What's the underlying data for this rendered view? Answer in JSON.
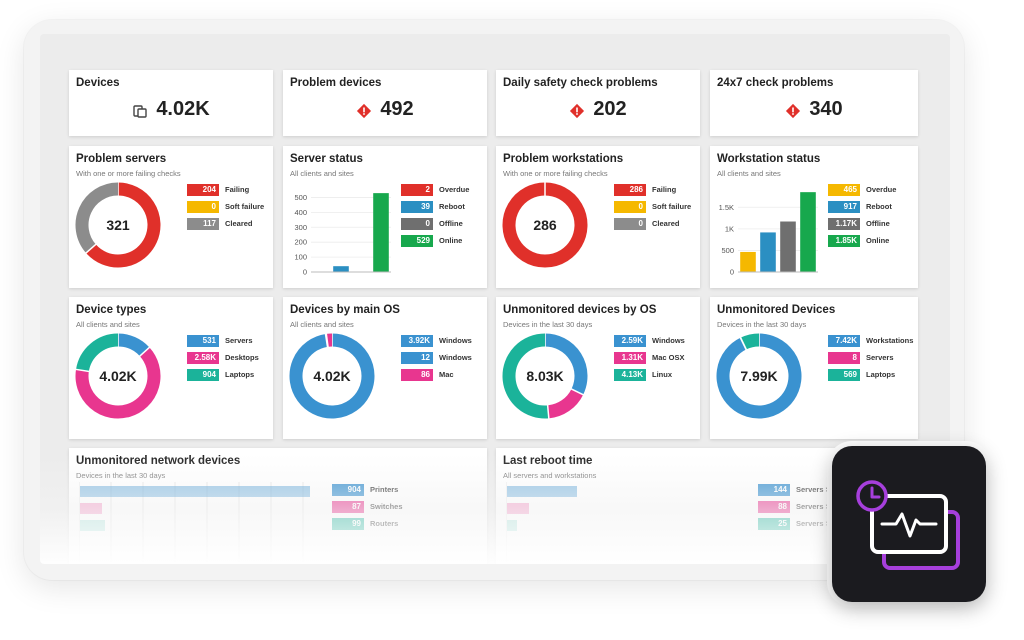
{
  "summary": [
    {
      "title": "Devices",
      "value": "4.02K",
      "icon": "devices-icon"
    },
    {
      "title": "Problem devices",
      "value": "492",
      "icon": "alert-icon"
    },
    {
      "title": "Daily safety check problems",
      "value": "202",
      "icon": "alert-icon"
    },
    {
      "title": "24x7 check problems",
      "value": "340",
      "icon": "alert-icon"
    }
  ],
  "problem_servers": {
    "title": "Problem servers",
    "subtitle": "With one or more failing checks",
    "center": "321",
    "legend": [
      {
        "value": "204",
        "label": "Failing",
        "color": "#e0302a"
      },
      {
        "value": "0",
        "label": "Soft failure",
        "color": "#f5b800"
      },
      {
        "value": "117",
        "label": "Cleared",
        "color": "#8c8c8c"
      }
    ]
  },
  "server_status": {
    "title": "Server status",
    "subtitle": "All clients and sites",
    "legend": [
      {
        "value": "2",
        "label": "Overdue",
        "color": "#e0302a"
      },
      {
        "value": "39",
        "label": "Reboot",
        "color": "#2b8fc2"
      },
      {
        "value": "0",
        "label": "Offline",
        "color": "#6f6f6f"
      },
      {
        "value": "529",
        "label": "Online",
        "color": "#17a84d"
      }
    ]
  },
  "problem_workstations": {
    "title": "Problem workstations",
    "subtitle": "With one or more failing checks",
    "center": "286",
    "legend": [
      {
        "value": "286",
        "label": "Failing",
        "color": "#e0302a"
      },
      {
        "value": "0",
        "label": "Soft failure",
        "color": "#f5b800"
      },
      {
        "value": "0",
        "label": "Cleared",
        "color": "#8c8c8c"
      }
    ]
  },
  "workstation_status": {
    "title": "Workstation status",
    "subtitle": "All clients and sites",
    "legend": [
      {
        "value": "465",
        "label": "Overdue",
        "color": "#f5b800"
      },
      {
        "value": "917",
        "label": "Reboot",
        "color": "#2b8fc2"
      },
      {
        "value": "1.17K",
        "label": "Offline",
        "color": "#6f6f6f"
      },
      {
        "value": "1.85K",
        "label": "Online",
        "color": "#17a84d"
      }
    ]
  },
  "device_types": {
    "title": "Device types",
    "subtitle": "All clients and sites",
    "center": "4.02K",
    "legend": [
      {
        "value": "531",
        "label": "Servers",
        "color": "#3a92d0"
      },
      {
        "value": "2.58K",
        "label": "Desktops",
        "color": "#e8368f"
      },
      {
        "value": "904",
        "label": "Laptops",
        "color": "#1bb39a"
      }
    ]
  },
  "devices_by_os": {
    "title": "Devices by main OS",
    "subtitle": "All clients and sites",
    "center": "4.02K",
    "legend": [
      {
        "value": "3.92K",
        "label": "Windows",
        "color": "#3a92d0"
      },
      {
        "value": "12",
        "label": "Windows",
        "color": "#3a92d0"
      },
      {
        "value": "86",
        "label": "Mac",
        "color": "#e8368f"
      }
    ]
  },
  "unmonitored_by_os": {
    "title": "Unmonitored devices by OS",
    "subtitle": "Devices in the last 30 days",
    "center": "8.03K",
    "legend": [
      {
        "value": "2.59K",
        "label": "Windows",
        "color": "#3a92d0"
      },
      {
        "value": "1.31K",
        "label": "Mac OSX",
        "color": "#e8368f"
      },
      {
        "value": "4.13K",
        "label": "Linux",
        "color": "#1bb39a"
      }
    ]
  },
  "unmonitored_devices": {
    "title": "Unmonitored Devices",
    "subtitle": "Devices in the last 30 days",
    "center": "7.99K",
    "legend": [
      {
        "value": "7.42K",
        "label": "Workstations",
        "color": "#3a92d0"
      },
      {
        "value": "8",
        "label": "Servers",
        "color": "#e8368f"
      },
      {
        "value": "569",
        "label": "Laptops",
        "color": "#1bb39a"
      }
    ]
  },
  "unmonitored_network": {
    "title": "Unmonitored network devices",
    "subtitle": "Devices in the last 30 days",
    "legend": [
      {
        "value": "904",
        "label": "Printers",
        "color": "#3a92d0"
      },
      {
        "value": "87",
        "label": "Switches",
        "color": "#e8368f"
      },
      {
        "value": "99",
        "label": "Routers",
        "color": "#1bb39a"
      }
    ]
  },
  "last_reboot": {
    "title": "Last reboot time",
    "subtitle": "All servers and workstations",
    "legend": [
      {
        "value": "144",
        "label": "Servers >",
        "color": "#3a92d0"
      },
      {
        "value": "88",
        "label": "Servers >",
        "color": "#e8368f"
      },
      {
        "value": "25",
        "label": "Servers >",
        "color": "#1bb39a"
      }
    ]
  },
  "chart_data": [
    {
      "type": "pie",
      "title": "Problem servers",
      "categories": [
        "Failing",
        "Soft failure",
        "Cleared"
      ],
      "values": [
        204,
        0,
        117
      ]
    },
    {
      "type": "bar",
      "title": "Server status",
      "categories": [
        "Overdue",
        "Reboot",
        "Offline",
        "Online"
      ],
      "values": [
        2,
        39,
        0,
        529
      ],
      "yticks": [
        "0",
        "100",
        "200",
        "300",
        "400",
        "500"
      ],
      "ylim": [
        0,
        550
      ]
    },
    {
      "type": "pie",
      "title": "Problem workstations",
      "categories": [
        "Failing",
        "Soft failure",
        "Cleared"
      ],
      "values": [
        286,
        0,
        0
      ]
    },
    {
      "type": "bar",
      "title": "Workstation status",
      "categories": [
        "Overdue",
        "Reboot",
        "Offline",
        "Online"
      ],
      "values": [
        465,
        917,
        1170,
        1850
      ],
      "yticks": [
        "0",
        "500",
        "1K",
        "1.5K"
      ],
      "ylim": [
        0,
        1900
      ]
    },
    {
      "type": "pie",
      "title": "Device types",
      "categories": [
        "Servers",
        "Desktops",
        "Laptops"
      ],
      "values": [
        531,
        2580,
        904
      ]
    },
    {
      "type": "pie",
      "title": "Devices by main OS",
      "categories": [
        "Windows",
        "Windows",
        "Mac"
      ],
      "values": [
        3920,
        12,
        86
      ]
    },
    {
      "type": "pie",
      "title": "Unmonitored devices by OS",
      "categories": [
        "Windows",
        "Mac OSX",
        "Linux"
      ],
      "values": [
        2590,
        1310,
        4130
      ]
    },
    {
      "type": "pie",
      "title": "Unmonitored Devices",
      "categories": [
        "Workstations",
        "Servers",
        "Laptops"
      ],
      "values": [
        7420,
        8,
        569
      ]
    }
  ],
  "colors": {
    "alert": "#e0302a",
    "badge_bg": "#1b1b1f",
    "badge_accent": "#a63fdc"
  }
}
